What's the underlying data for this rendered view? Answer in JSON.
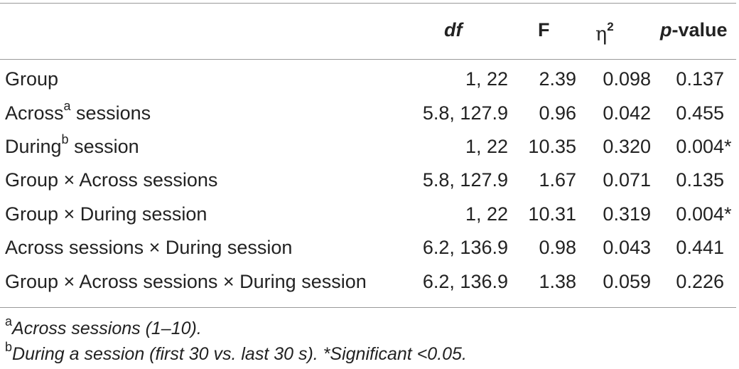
{
  "header": {
    "df": "df",
    "f": "F",
    "eta": "η",
    "eta_sup": "2",
    "p_italic": "p",
    "p_rest": "-value"
  },
  "rows": [
    {
      "label": "Group",
      "sup": "",
      "label_rest": "",
      "df": "1, 22",
      "f": "2.39",
      "eta": "0.098",
      "p": "0.137",
      "star": ""
    },
    {
      "label": "Across",
      "sup": "a",
      "label_rest": " sessions",
      "df": "5.8, 127.9",
      "f": "0.96",
      "eta": "0.042",
      "p": "0.455",
      "star": ""
    },
    {
      "label": "During",
      "sup": "b",
      "label_rest": " session",
      "df": "1, 22",
      "f": "10.35",
      "eta": "0.320",
      "p": "0.004",
      "star": "*"
    },
    {
      "label": "Group × Across sessions",
      "sup": "",
      "label_rest": "",
      "df": "5.8, 127.9",
      "f": "1.67",
      "eta": "0.071",
      "p": "0.135",
      "star": ""
    },
    {
      "label": "Group × During session",
      "sup": "",
      "label_rest": "",
      "df": "1, 22",
      "f": "10.31",
      "eta": "0.319",
      "p": "0.004",
      "star": "*"
    },
    {
      "label": "Across sessions × During session",
      "sup": "",
      "label_rest": "",
      "df": "6.2, 136.9",
      "f": "0.98",
      "eta": "0.043",
      "p": "0.441",
      "star": ""
    },
    {
      "label": "Group × Across sessions × During session",
      "sup": "",
      "label_rest": "",
      "df": "6.2, 136.9",
      "f": "1.38",
      "eta": "0.059",
      "p": "0.226",
      "star": ""
    }
  ],
  "footnotes": [
    {
      "mark": "a",
      "text": "Across sessions (1–10)."
    },
    {
      "mark": "b",
      "text": "During a session (first 30 vs. last 30 s). *Significant <0.05."
    }
  ]
}
